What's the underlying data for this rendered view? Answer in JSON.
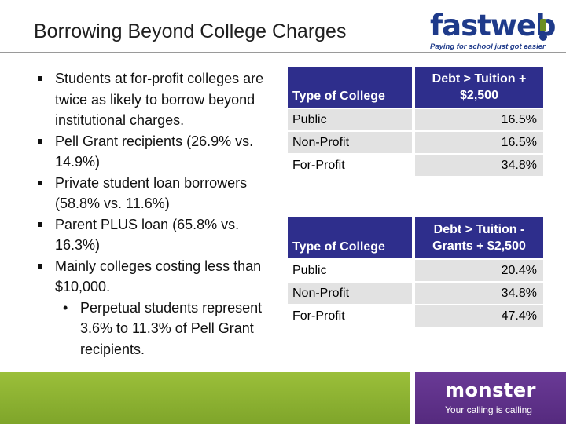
{
  "slide": {
    "title": "Borrowing Beyond College Charges"
  },
  "logo_fastweb": {
    "part1": "fast",
    "part2": "web",
    "tagline": "Paying for school just got easier"
  },
  "bullets": [
    {
      "level": 1,
      "text": "Students at for-profit colleges are twice as likely to borrow beyond institutional charges."
    },
    {
      "level": 1,
      "text": "Pell Grant recipients (26.9% vs. 14.9%)"
    },
    {
      "level": 1,
      "text": "Private student loan borrowers (58.8% vs. 11.6%)"
    },
    {
      "level": 1,
      "text": "Parent PLUS loan (65.8% vs. 16.3%)"
    },
    {
      "level": 1,
      "text": "Mainly colleges costing less than $10,000."
    },
    {
      "level": 2,
      "text": "Perpetual students represent 3.6% to 11.3% of Pell Grant recipients."
    }
  ],
  "table1": {
    "header_col1": "Type of College",
    "header_col2": "Debt > Tuition + $2,500",
    "rows": [
      {
        "type": "Public",
        "value": "16.5%"
      },
      {
        "type": "Non-Profit",
        "value": "16.5%"
      },
      {
        "type": "For-Profit",
        "value": "34.8%"
      }
    ]
  },
  "table2": {
    "header_col1": "Type of College",
    "header_col2": "Debt > Tuition - Grants + $2,500",
    "rows": [
      {
        "type": "Public",
        "value": "20.4%"
      },
      {
        "type": "Non-Profit",
        "value": "34.8%"
      },
      {
        "type": "For-Profit",
        "value": "47.4%"
      }
    ]
  },
  "logo_monster": {
    "name": "monster",
    "tagline": "Your calling is calling"
  },
  "colors": {
    "table_header": "#2e2e8c",
    "cell_shade": "#e2e2e2",
    "footer_green": "#8db232",
    "footer_purple": "#5f3089",
    "fastweb_blue": "#1e3a8a"
  }
}
